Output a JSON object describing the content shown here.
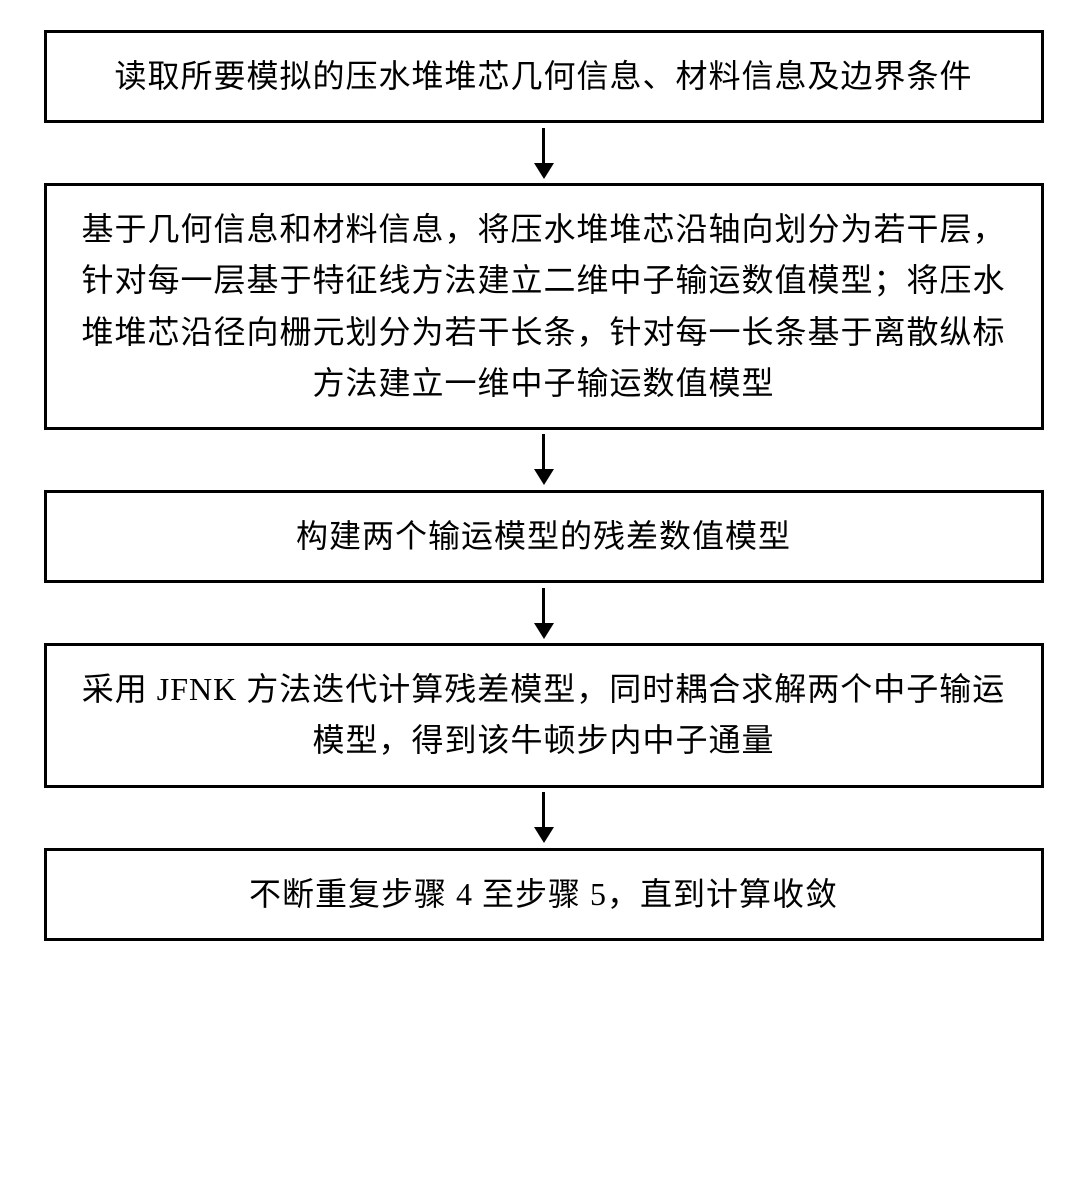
{
  "flowchart": {
    "type": "flowchart",
    "direction": "vertical",
    "background_color": "#ffffff",
    "box_border_color": "#000000",
    "box_border_width": 3,
    "box_background": "#ffffff",
    "text_color": "#000000",
    "font_size": 32,
    "font_family": "SimSun",
    "arrow_color": "#000000",
    "arrow_line_width": 3,
    "arrow_head_size": 16,
    "arrow_gap_height": 60,
    "nodes": [
      {
        "id": "step1",
        "text": "读取所要模拟的压水堆堆芯几何信息、材料信息及边界条件",
        "lines": 2
      },
      {
        "id": "step2",
        "text": "基于几何信息和材料信息，将压水堆堆芯沿轴向划分为若干层，针对每一层基于特征线方法建立二维中子输运数值模型；将压水堆堆芯沿径向栅元划分为若干长条，针对每一长条基于离散纵标方法建立一维中子输运数值模型",
        "lines": 5
      },
      {
        "id": "step3",
        "text": "构建两个输运模型的残差数值模型",
        "lines": 1
      },
      {
        "id": "step4",
        "text": "采用 JFNK 方法迭代计算残差模型，同时耦合求解两个中子输运模型，得到该牛顿步内中子通量",
        "lines": 2
      },
      {
        "id": "step5",
        "text": "不断重复步骤 4 至步骤 5，直到计算收敛",
        "lines": 1
      }
    ],
    "edges": [
      {
        "from": "step1",
        "to": "step2"
      },
      {
        "from": "step2",
        "to": "step3"
      },
      {
        "from": "step3",
        "to": "step4"
      },
      {
        "from": "step4",
        "to": "step5"
      }
    ]
  }
}
